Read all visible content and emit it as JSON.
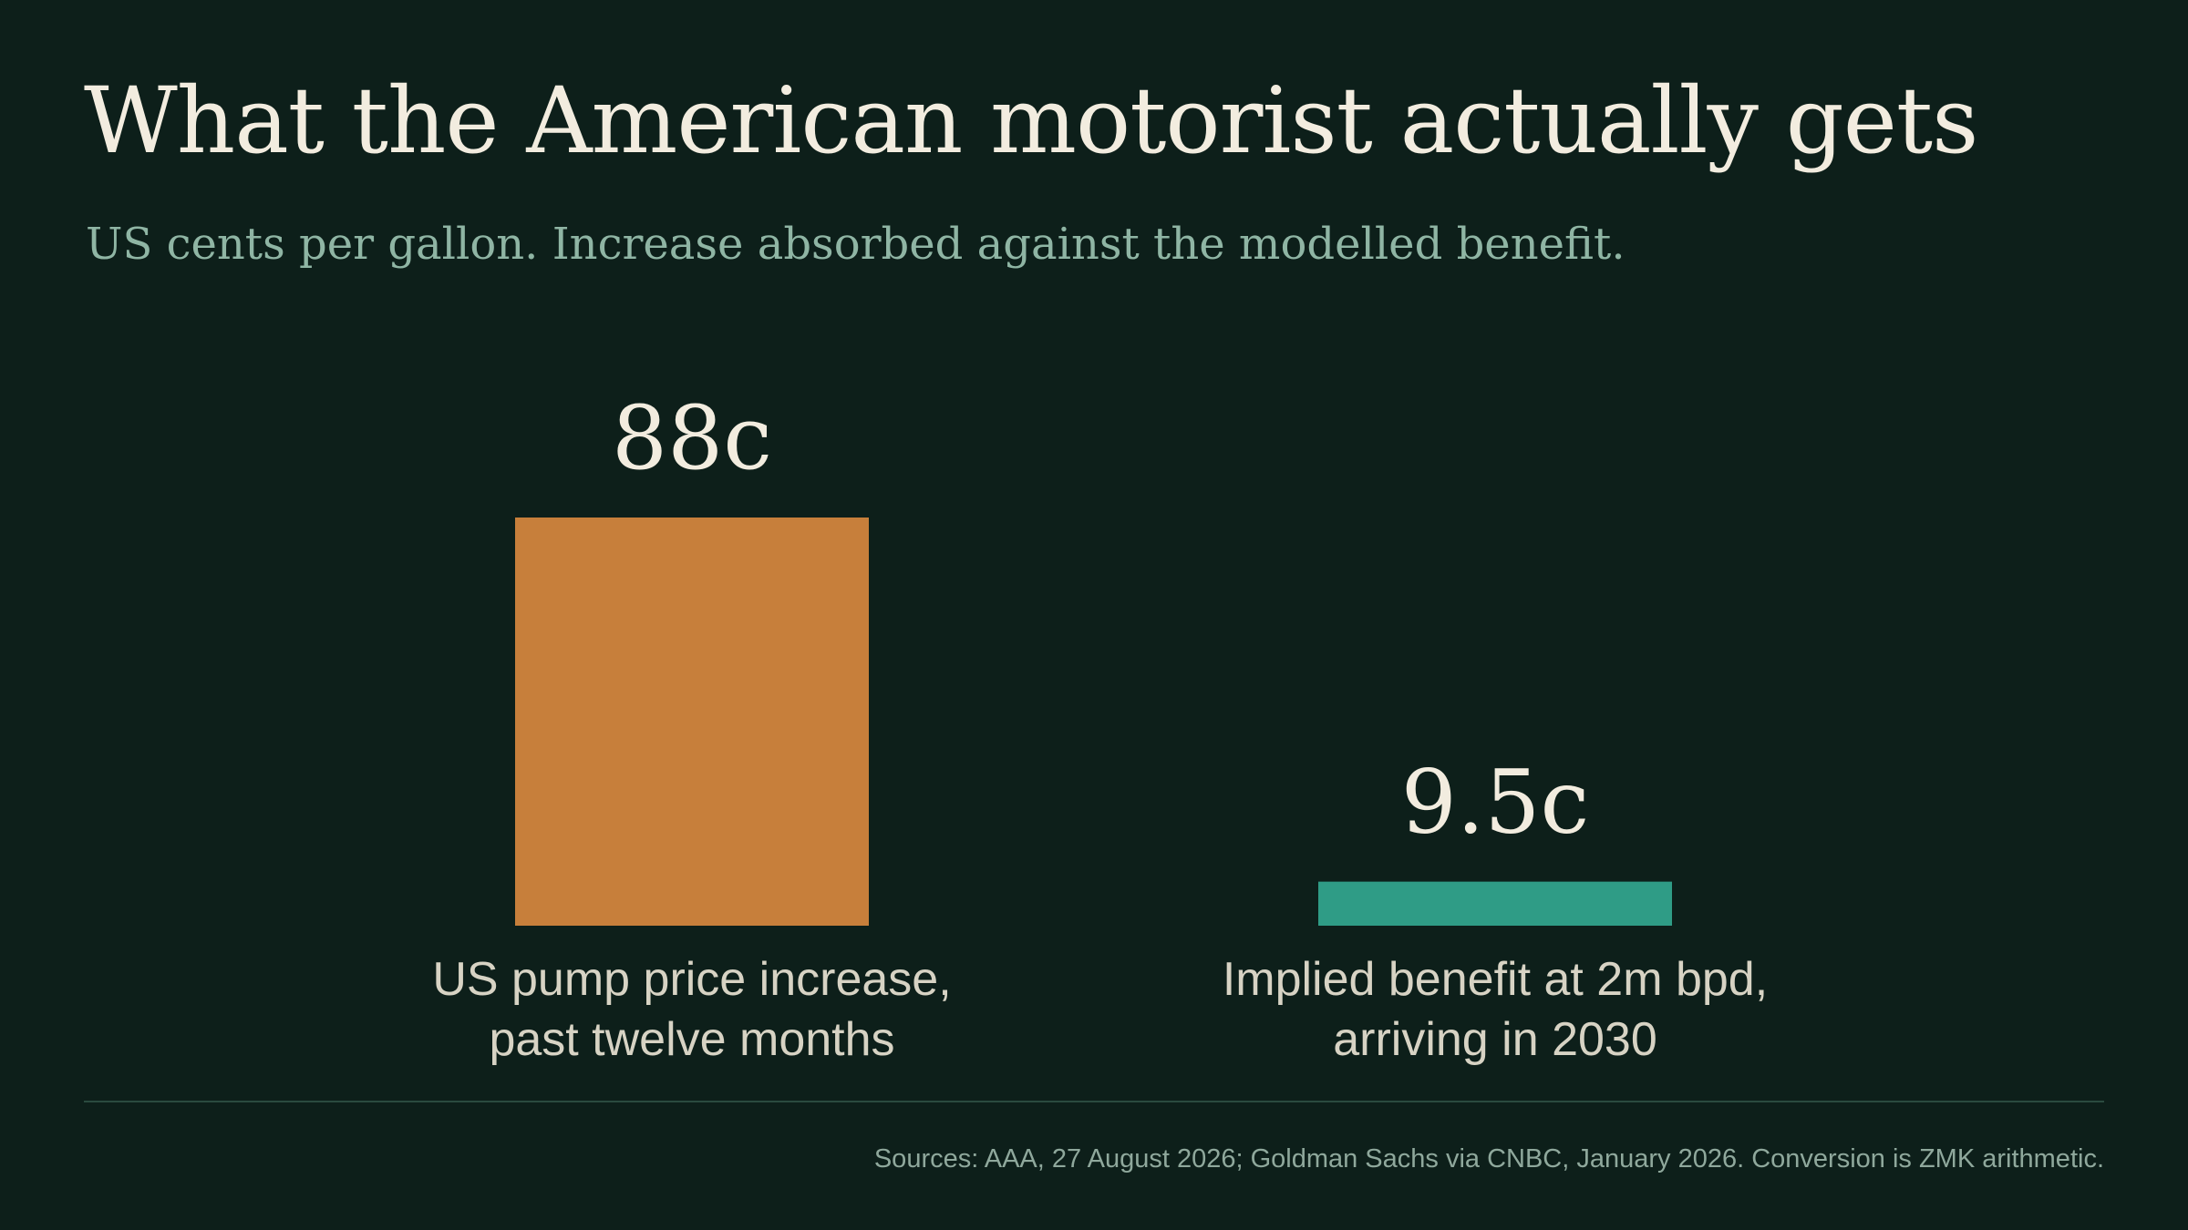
{
  "title": "What the American motorist actually gets",
  "subtitle": "US cents per gallon. Increase absorbed against the modelled benefit.",
  "source": "Sources: AAA, 27 August 2026; Goldman Sachs via CNBC, January 2026. Conversion is ZMK arithmetic.",
  "chart_data": {
    "type": "bar",
    "unit_suffix": "c",
    "categories": [
      [
        "US pump price increase,",
        "past twelve months"
      ],
      [
        "Implied benefit at 2m bpd,",
        "arriving in 2030"
      ]
    ],
    "values": [
      88,
      9.5
    ],
    "value_labels": [
      "88c",
      "9.5c"
    ],
    "colors": [
      "#c77f3b",
      "#2f9c86"
    ],
    "ylim": [
      0,
      88
    ],
    "grid": false,
    "legend": "none"
  }
}
